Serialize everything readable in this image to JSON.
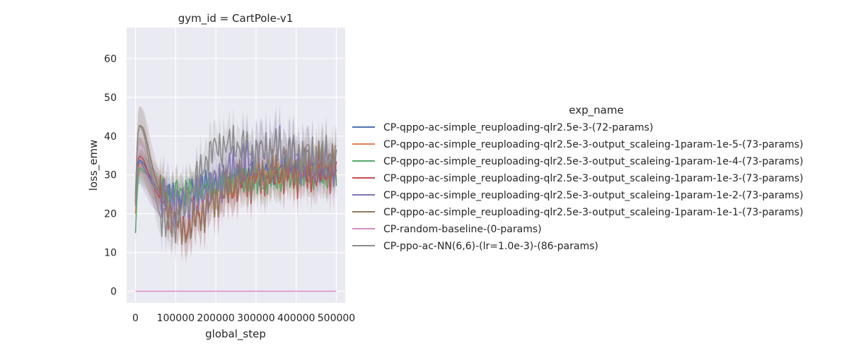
{
  "chart_data": {
    "type": "line",
    "title": "gym_id = CartPole-v1",
    "xlabel": "global_step",
    "ylabel": "loss_emw",
    "xlim": [
      -22000,
      522000
    ],
    "ylim": [
      -3,
      68
    ],
    "xticks": [
      0,
      100000,
      200000,
      300000,
      400000,
      500000
    ],
    "xtick_labels": [
      "0",
      "100000",
      "200000",
      "300000",
      "400000",
      "500000"
    ],
    "yticks": [
      0,
      10,
      20,
      30,
      40,
      50,
      60
    ],
    "ytick_labels": [
      "0",
      "10",
      "20",
      "30",
      "40",
      "50",
      "60"
    ],
    "grid": true,
    "legend_title": "exp_name",
    "legend_position": "right",
    "series": [
      {
        "name": "CP-qppo-ac-simple_reuploading-qlr2.5e-3-(72-params)",
        "color": "#4c72b0",
        "x": [
          0,
          5000,
          10000,
          20000,
          30000,
          40000,
          50000,
          60000,
          80000,
          100000,
          120000,
          150000,
          200000,
          250000,
          300000,
          350000,
          400000,
          450000,
          500000
        ],
        "y": [
          22,
          31,
          34,
          33,
          31,
          29,
          27,
          26,
          25,
          25,
          24,
          27,
          28,
          29,
          30,
          31,
          32,
          31,
          31
        ],
        "band": 3
      },
      {
        "name": "CP-qppo-ac-simple_reuploading-qlr2.5e-3-output_scaleing-1param-1e-5-(73-params)",
        "color": "#dd8452",
        "x": [
          0,
          5000,
          10000,
          20000,
          30000,
          40000,
          50000,
          60000,
          80000,
          100000,
          120000,
          150000,
          200000,
          250000,
          300000,
          350000,
          400000,
          450000,
          500000
        ],
        "y": [
          20,
          30,
          33,
          32,
          30,
          28,
          27,
          26,
          25,
          25,
          26,
          26,
          27,
          28,
          29,
          30,
          30,
          31,
          31
        ],
        "band": 4
      },
      {
        "name": "CP-qppo-ac-simple_reuploading-qlr2.5e-3-output_scaleing-1param-1e-4-(73-params)",
        "color": "#55a868",
        "x": [
          0,
          5000,
          10000,
          20000,
          30000,
          40000,
          50000,
          60000,
          80000,
          100000,
          120000,
          150000,
          200000,
          250000,
          300000,
          350000,
          400000,
          450000,
          500000
        ],
        "y": [
          15,
          28,
          32,
          31,
          30,
          28,
          27,
          26,
          25,
          25,
          26,
          26,
          27,
          29,
          28,
          29,
          30,
          30,
          30
        ],
        "band": 4
      },
      {
        "name": "CP-qppo-ac-simple_reuploading-qlr2.5e-3-output_scaleing-1param-1e-3-(73-params)",
        "color": "#c44e52",
        "x": [
          0,
          5000,
          10000,
          20000,
          30000,
          40000,
          50000,
          60000,
          80000,
          100000,
          120000,
          150000,
          200000,
          250000,
          300000,
          350000,
          400000,
          450000,
          500000
        ],
        "y": [
          23,
          33,
          35,
          34,
          31,
          28,
          26,
          24,
          21,
          18,
          16,
          19,
          24,
          27,
          29,
          30,
          30,
          30,
          31
        ],
        "band": 5
      },
      {
        "name": "CP-qppo-ac-simple_reuploading-qlr2.5e-3-output_scaleing-1param-1e-2-(73-params)",
        "color": "#8172b3",
        "x": [
          0,
          5000,
          10000,
          20000,
          30000,
          40000,
          50000,
          60000,
          80000,
          100000,
          120000,
          150000,
          200000,
          250000,
          300000,
          350000,
          400000,
          450000,
          500000
        ],
        "y": [
          24,
          33,
          34,
          32,
          30,
          28,
          27,
          25,
          24,
          23,
          22,
          24,
          28,
          32,
          35,
          37,
          34,
          33,
          32
        ],
        "band": 6
      },
      {
        "name": "CP-qppo-ac-simple_reuploading-qlr2.5e-3-output_scaleing-1param-1e-1-(73-params)",
        "color": "#937860",
        "x": [
          0,
          5000,
          10000,
          20000,
          30000,
          40000,
          50000,
          60000,
          80000,
          100000,
          120000,
          150000,
          200000,
          250000,
          300000,
          350000,
          400000,
          450000,
          500000
        ],
        "y": [
          25,
          40,
          43,
          42,
          38,
          33,
          29,
          26,
          22,
          19,
          15,
          18,
          24,
          28,
          30,
          31,
          32,
          33,
          34
        ],
        "band": 5
      },
      {
        "name": "CP-random-baseline-(0-params)",
        "color": "#da8bc3",
        "x": [
          0,
          500000
        ],
        "y": [
          0,
          0
        ],
        "band": 0
      },
      {
        "name": "CP-ppo-ac-NN(6,6)-(lr=1.0e-3)-(86-params)",
        "color": "#8c8c8c",
        "x": [
          0,
          5000,
          10000,
          20000,
          30000,
          40000,
          50000,
          60000,
          80000,
          100000,
          120000,
          150000,
          180000,
          200000,
          250000,
          300000,
          350000,
          400000,
          450000,
          500000
        ],
        "y": [
          23,
          40,
          43,
          41,
          36,
          30,
          24,
          20,
          16,
          18,
          21,
          28,
          35,
          37,
          38,
          36,
          37,
          36,
          35,
          35
        ],
        "band": 5
      }
    ]
  }
}
